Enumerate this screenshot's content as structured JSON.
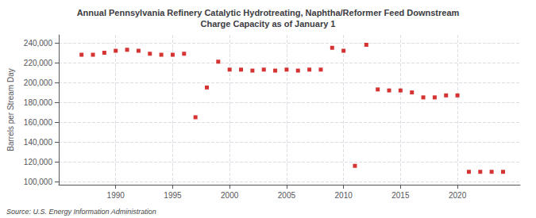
{
  "chart_data": {
    "type": "scatter",
    "title": "Annual Pennsylvania Refinery Catalytic Hydrotreating, Naphtha/Reformer Feed Downstream\nCharge Capacity as of January 1",
    "ylabel": "Barrels per Stream Day",
    "annotation": "Source: U.S. Energy Information Administration",
    "x": [
      1987,
      1988,
      1989,
      1990,
      1991,
      1992,
      1993,
      1994,
      1995,
      1996,
      1997,
      1998,
      1999,
      2000,
      2001,
      2002,
      2003,
      2004,
      2005,
      2006,
      2007,
      2008,
      2009,
      2010,
      2011,
      2012,
      2013,
      2014,
      2015,
      2016,
      2017,
      2018,
      2019,
      2020,
      2021,
      2022,
      2023,
      2024
    ],
    "values": [
      228000,
      228000,
      230000,
      232000,
      233000,
      232000,
      229000,
      228000,
      228000,
      229000,
      165000,
      195000,
      221000,
      213000,
      213000,
      212000,
      213000,
      212000,
      213000,
      212000,
      213000,
      213000,
      235000,
      232000,
      116000,
      238000,
      193000,
      192000,
      192000,
      190000,
      185000,
      185000,
      187000,
      187000,
      110000,
      110000,
      110000,
      110000
    ],
    "color": "#cc0000",
    "marker": "square",
    "xlim": [
      1985.0,
      2025.5
    ],
    "xticks": [
      1990,
      1995,
      2000,
      2005,
      2010,
      2015,
      2020
    ],
    "ylim": [
      97000,
      248000
    ],
    "yticks": [
      {
        "value": 100000,
        "label": "100,000"
      },
      {
        "value": 120000,
        "label": "120,000"
      },
      {
        "value": 140000,
        "label": "140,000"
      },
      {
        "value": 160000,
        "label": "160,000"
      },
      {
        "value": 180000,
        "label": "180,000"
      },
      {
        "value": 200000,
        "label": "200,000"
      },
      {
        "value": 220000,
        "label": "220,000"
      },
      {
        "value": 240000,
        "label": "240,000"
      }
    ],
    "grid": true
  }
}
